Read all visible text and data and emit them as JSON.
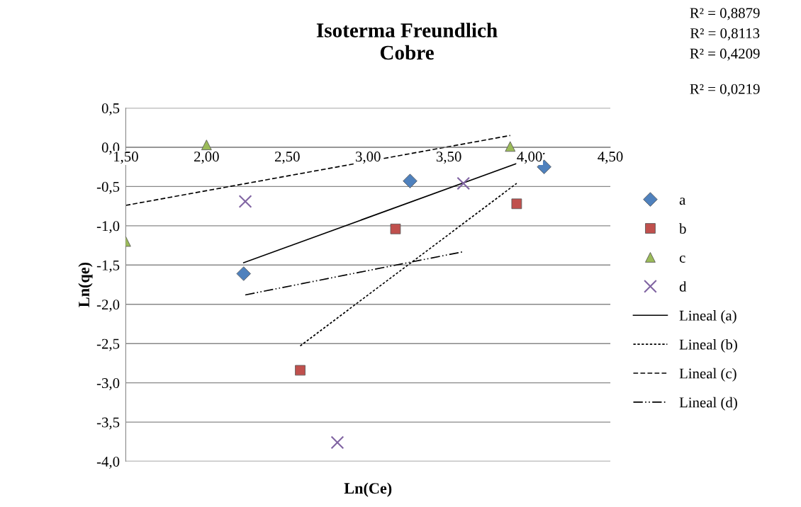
{
  "chart_data": {
    "type": "scatter",
    "title": "Isoterma Freundlich\nCobre",
    "xlabel": "Ln(Ce)",
    "ylabel": "Ln(qe)",
    "xlim": [
      1.5,
      4.5
    ],
    "xticks": [
      {
        "value": 1.5,
        "label": "1,50"
      },
      {
        "value": 2.0,
        "label": "2,00"
      },
      {
        "value": 2.5,
        "label": "2,50"
      },
      {
        "value": 3.0,
        "label": "3,00"
      },
      {
        "value": 3.5,
        "label": "3,50"
      },
      {
        "value": 4.0,
        "label": "4,00"
      },
      {
        "value": 4.5,
        "label": "4,50"
      }
    ],
    "ylim": [
      -4.0,
      0.5
    ],
    "yticks": [
      {
        "value": 0.5,
        "label": "0,5"
      },
      {
        "value": 0.0,
        "label": "0,0"
      },
      {
        "value": -0.5,
        "label": "-0,5"
      },
      {
        "value": -1.0,
        "label": "-1,0"
      },
      {
        "value": -1.5,
        "label": "-1,5"
      },
      {
        "value": -2.0,
        "label": "-2,0"
      },
      {
        "value": -2.5,
        "label": "-2,5"
      },
      {
        "value": -3.0,
        "label": "-3,0"
      },
      {
        "value": -3.5,
        "label": "-3,5"
      },
      {
        "value": -4.0,
        "label": "-4,0"
      }
    ],
    "grid": "y",
    "legend": "right",
    "series": [
      {
        "name": "a",
        "marker": "diamond",
        "color": "#4f81bd",
        "x": [
          4.09,
          3.26,
          2.23
        ],
        "values": [
          -0.25,
          -0.43,
          -1.61
        ]
      },
      {
        "name": "b",
        "marker": "square",
        "color": "#c0504d",
        "x": [
          3.92,
          3.17,
          2.58
        ],
        "values": [
          -0.72,
          -1.04,
          -2.84
        ]
      },
      {
        "name": "c",
        "marker": "triangle",
        "color": "#9bbb59",
        "x": [
          1.5,
          2.0,
          3.88
        ],
        "values": [
          -1.2,
          0.03,
          0.01
        ]
      },
      {
        "name": "d",
        "marker": "cross",
        "color": "#8064a2",
        "x": [
          2.24,
          3.59,
          2.81
        ],
        "values": [
          -0.69,
          -0.46,
          -3.76
        ]
      },
      {
        "name": "Lineal (a)",
        "type": "line",
        "line_style": "solid",
        "color": "#000000",
        "x": [
          2.23,
          4.09
        ],
        "values": [
          -1.47,
          -0.08
        ]
      },
      {
        "name": "Lineal (b)",
        "type": "line",
        "line_style": "dotted",
        "color": "#000000",
        "x": [
          2.58,
          3.92
        ],
        "values": [
          -2.53,
          -0.46
        ]
      },
      {
        "name": "Lineal (c)",
        "type": "line",
        "line_style": "dashed",
        "color": "#000000",
        "x": [
          1.5,
          3.88
        ],
        "values": [
          -0.74,
          0.15
        ]
      },
      {
        "name": "Lineal (d)",
        "type": "line",
        "line_style": "dashdotdot",
        "color": "#000000",
        "x": [
          2.24,
          3.59
        ],
        "values": [
          -1.88,
          -1.33
        ]
      }
    ],
    "annotations": [
      "R² = 0,8879",
      "R² = 0,8113",
      "R² = 0,4209",
      "R² = 0,0219"
    ]
  }
}
